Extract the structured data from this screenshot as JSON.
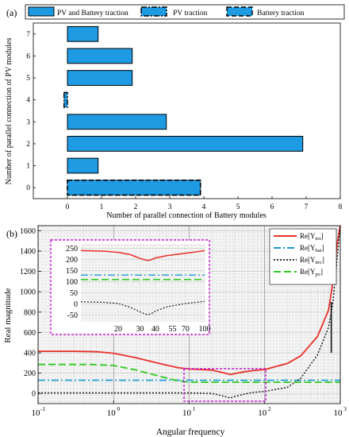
{
  "charts": {
    "a": {
      "panel_label": "(a)",
      "xlabel": "Number of parallel connection of Battery modules",
      "ylabel": "Number of parallel connection of PV modules",
      "legend": [
        {
          "label": "PV and Battery traction",
          "style": "solid"
        },
        {
          "label": "PV traction",
          "style": "dashdot"
        },
        {
          "label": "Battery traction",
          "style": "dashed"
        }
      ],
      "xticks": [
        "0",
        "1",
        "2",
        "3",
        "4",
        "5",
        "6",
        "7",
        "8"
      ],
      "yticks": [
        "0",
        "1",
        "2",
        "3",
        "4",
        "5",
        "6",
        "7"
      ]
    },
    "b": {
      "panel_label": "(b)",
      "xlabel": "Angular frequency",
      "ylabel": "Real magnitude",
      "xtick_powers": [
        "-1",
        "0",
        "1",
        "2",
        "3"
      ],
      "yticks": [
        "0",
        "200",
        "400",
        "600",
        "800",
        "1000",
        "1200",
        "1400",
        "1600"
      ],
      "legend": [
        {
          "label": "Re[Y",
          "sub": "tot",
          "end": "]",
          "color": "#e8302a",
          "style": "solid"
        },
        {
          "label": "Re[Y",
          "sub": "bat",
          "end": "]",
          "color": "#1a9ad6",
          "style": "dashdot"
        },
        {
          "label": "Re[Y",
          "sub": "inv",
          "end": "]",
          "color": "#111111",
          "style": "dotted"
        },
        {
          "label": "Re[Y",
          "sub": "pv",
          "end": "]",
          "color": "#2ecc1e",
          "style": "dashed"
        }
      ],
      "inset": {
        "yticks": [
          "250",
          "200",
          "150",
          "100",
          "50",
          "0",
          "-50"
        ],
        "xticks": [
          "20",
          "30",
          "40",
          "55",
          "70",
          "100"
        ]
      }
    }
  },
  "chart_data": [
    {
      "type": "bar",
      "orientation": "horizontal",
      "categories": [
        "0",
        "1",
        "2",
        "3",
        "4",
        "5",
        "6",
        "7"
      ],
      "series": [
        {
          "name": "PV and Battery traction",
          "values": [
            3.9,
            0.9,
            6.9,
            2.9,
            0,
            1.9,
            1.9,
            0.9
          ]
        },
        {
          "name": "PV traction",
          "values": [
            0,
            0,
            0,
            0,
            -0.1,
            0,
            0,
            0
          ]
        },
        {
          "name": "Battery traction",
          "values": [
            3.9,
            0,
            0,
            0,
            0,
            0,
            0,
            0
          ]
        }
      ],
      "xlim": [
        -1,
        8
      ],
      "xlabel": "Number of parallel connection of Battery modules",
      "ylabel": "Number of parallel connection of PV modules"
    },
    {
      "type": "line",
      "xscale": "log",
      "xlim": [
        0.1,
        1000
      ],
      "ylim": [
        -100,
        1650
      ],
      "xlabel": "Angular frequency",
      "ylabel": "Real magnitude",
      "series": [
        {
          "name": "Re[Ytot]",
          "x": [
            0.1,
            0.3,
            0.6,
            1,
            2,
            4,
            7,
            10,
            20,
            30,
            35,
            40,
            55,
            70,
            100,
            200,
            300,
            500,
            700,
            800,
            900,
            1000
          ],
          "y": [
            415,
            415,
            410,
            395,
            350,
            295,
            255,
            240,
            230,
            200,
            185,
            195,
            215,
            225,
            235,
            295,
            370,
            560,
            820,
            1100,
            1450,
            1650
          ]
        },
        {
          "name": "Re[Ybat]",
          "x": [
            0.1,
            1,
            10,
            100,
            1000
          ],
          "y": [
            130,
            130,
            130,
            130,
            130
          ]
        },
        {
          "name": "Re[Yinv]",
          "x": [
            0.1,
            1,
            10,
            20,
            30,
            35,
            40,
            55,
            70,
            100,
            200,
            300,
            500,
            700,
            800,
            900,
            1000
          ],
          "y": [
            5,
            5,
            5,
            0,
            -30,
            -45,
            -30,
            -5,
            10,
            20,
            60,
            150,
            380,
            650,
            900,
            1300,
            1650
          ]
        },
        {
          "name": "Re[Ypv]",
          "x": [
            0.1,
            0.5,
            1,
            2,
            4,
            7,
            10,
            100,
            1000
          ],
          "y": [
            285,
            285,
            275,
            230,
            170,
            125,
            110,
            110,
            110
          ]
        }
      ]
    }
  ]
}
